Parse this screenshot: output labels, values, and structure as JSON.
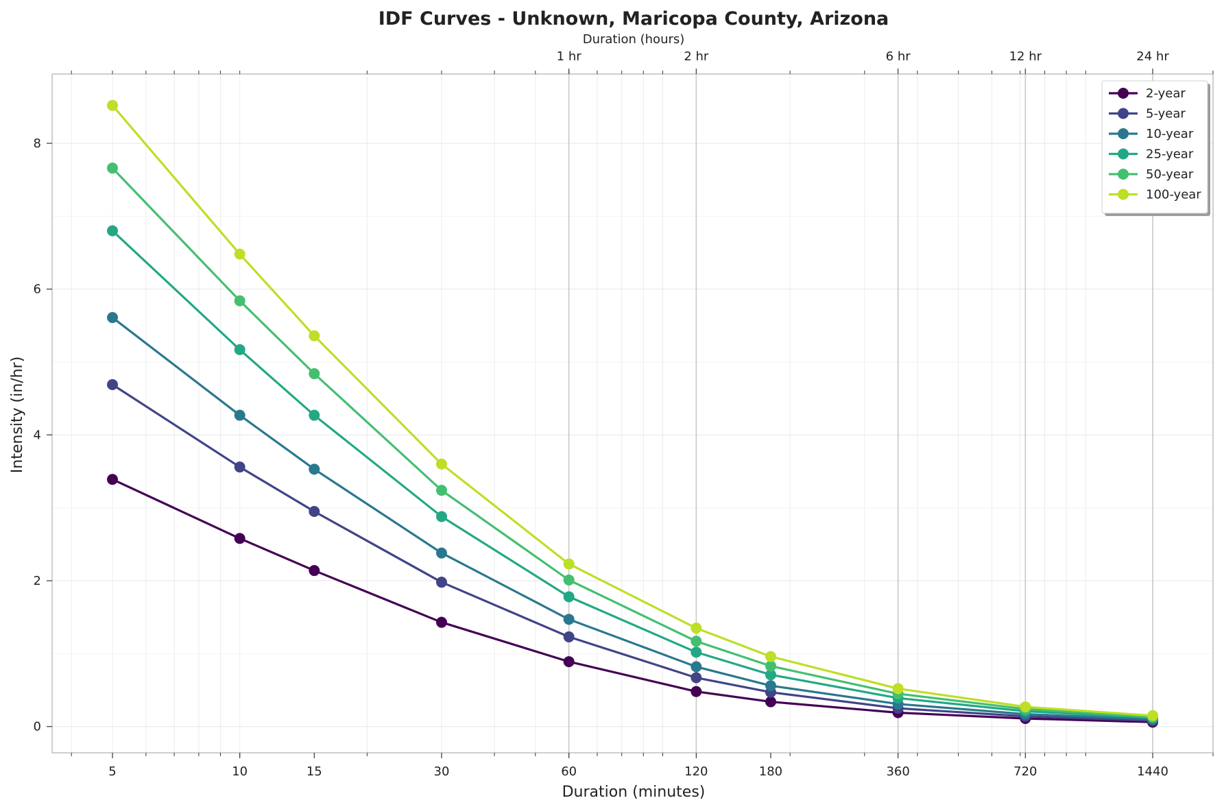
{
  "chart_data": {
    "type": "line",
    "title": "IDF Curves - Unknown, Maricopa County, Arizona",
    "xlabel": "Duration (minutes)",
    "ylabel": "Intensity (in/hr)",
    "top_xlabel": "Duration (hours)",
    "x_scale": "log",
    "xlim": [
      3.6,
      2000
    ],
    "ylim": [
      -0.36,
      8.95
    ],
    "grid": true,
    "legend_position": "top-right",
    "x": [
      5,
      10,
      15,
      30,
      60,
      120,
      180,
      360,
      720,
      1440
    ],
    "x_tick_labels": [
      "5",
      "10",
      "15",
      "30",
      "60",
      "120",
      "180",
      "360",
      "720",
      "1440"
    ],
    "y_ticks": [
      0,
      2,
      4,
      6,
      8
    ],
    "y_tick_labels": [
      "0",
      "2",
      "4",
      "6",
      "8"
    ],
    "top_ticks": [
      {
        "minutes": 60,
        "label": "1 hr"
      },
      {
        "minutes": 120,
        "label": "2 hr"
      },
      {
        "minutes": 360,
        "label": "6 hr"
      },
      {
        "minutes": 720,
        "label": "12 hr"
      },
      {
        "minutes": 1440,
        "label": "24 hr"
      }
    ],
    "series": [
      {
        "name": "2-year",
        "color": "#440154",
        "values": [
          3.39,
          2.58,
          2.14,
          1.43,
          0.89,
          0.48,
          0.34,
          0.19,
          0.11,
          0.06
        ]
      },
      {
        "name": "5-year",
        "color": "#414487",
        "values": [
          4.69,
          3.56,
          2.95,
          1.98,
          1.23,
          0.67,
          0.47,
          0.25,
          0.14,
          0.08
        ]
      },
      {
        "name": "10-year",
        "color": "#2a788e",
        "values": [
          5.61,
          4.27,
          3.53,
          2.38,
          1.47,
          0.82,
          0.56,
          0.31,
          0.17,
          0.1
        ]
      },
      {
        "name": "25-year",
        "color": "#22a884",
        "values": [
          6.8,
          5.17,
          4.27,
          2.88,
          1.78,
          1.02,
          0.71,
          0.39,
          0.21,
          0.12
        ]
      },
      {
        "name": "50-year",
        "color": "#44bf70",
        "values": [
          7.66,
          5.84,
          4.84,
          3.24,
          2.01,
          1.17,
          0.83,
          0.45,
          0.24,
          0.13
        ]
      },
      {
        "name": "100-year",
        "color": "#bddf26",
        "values": [
          8.52,
          6.48,
          5.36,
          3.6,
          2.23,
          1.35,
          0.96,
          0.52,
          0.27,
          0.15
        ]
      }
    ]
  }
}
